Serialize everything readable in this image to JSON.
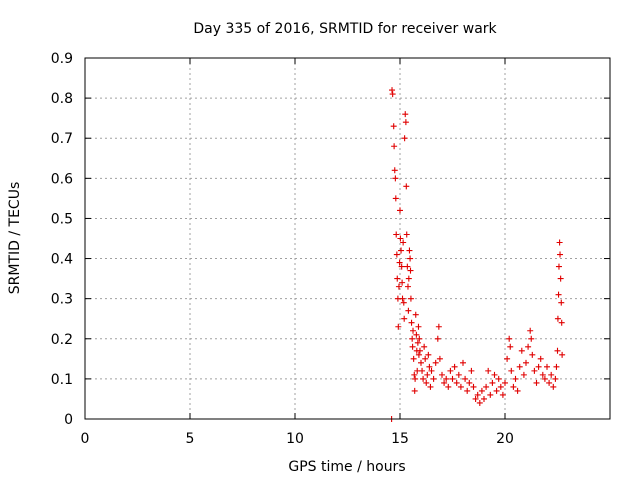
{
  "chart_data": {
    "type": "scatter",
    "title": "Day 335 of 2016, SRMTID for receiver wark",
    "xlabel": "GPS time / hours",
    "ylabel": "SRMTID / TECUs",
    "xlim": [
      0,
      25
    ],
    "ylim": [
      0,
      0.9
    ],
    "xticks": [
      0,
      5,
      10,
      15,
      20
    ],
    "xtick_labels": [
      "0",
      "5",
      "10",
      "15",
      "20"
    ],
    "yticks": [
      0,
      0.1,
      0.2,
      0.3,
      0.4,
      0.5,
      0.6,
      0.7,
      0.8,
      0.9
    ],
    "ytick_labels": [
      "0",
      "0.1",
      "0.2",
      "0.3",
      "0.4",
      "0.5",
      "0.6",
      "0.7",
      "0.8",
      "0.9"
    ],
    "grid": true,
    "marker": "+",
    "color": "#e00000",
    "series": [
      {
        "name": "SRMTID",
        "points": [
          [
            14.6,
            0.0
          ],
          [
            14.62,
            0.82
          ],
          [
            14.65,
            0.81
          ],
          [
            14.7,
            0.73
          ],
          [
            14.72,
            0.68
          ],
          [
            14.75,
            0.62
          ],
          [
            14.78,
            0.6
          ],
          [
            14.8,
            0.55
          ],
          [
            14.82,
            0.46
          ],
          [
            14.85,
            0.41
          ],
          [
            14.87,
            0.35
          ],
          [
            14.9,
            0.3
          ],
          [
            14.92,
            0.23
          ],
          [
            14.95,
            0.33
          ],
          [
            14.98,
            0.39
          ],
          [
            15.0,
            0.52
          ],
          [
            15.02,
            0.45
          ],
          [
            15.05,
            0.42
          ],
          [
            15.08,
            0.38
          ],
          [
            15.1,
            0.34
          ],
          [
            15.12,
            0.3
          ],
          [
            15.15,
            0.44
          ],
          [
            15.18,
            0.29
          ],
          [
            15.2,
            0.25
          ],
          [
            15.22,
            0.7
          ],
          [
            15.25,
            0.76
          ],
          [
            15.28,
            0.74
          ],
          [
            15.3,
            0.58
          ],
          [
            15.32,
            0.46
          ],
          [
            15.35,
            0.38
          ],
          [
            15.38,
            0.33
          ],
          [
            15.4,
            0.27
          ],
          [
            15.42,
            0.35
          ],
          [
            15.45,
            0.42
          ],
          [
            15.48,
            0.4
          ],
          [
            15.5,
            0.37
          ],
          [
            15.52,
            0.3
          ],
          [
            15.55,
            0.24
          ],
          [
            15.58,
            0.2
          ],
          [
            15.6,
            0.18
          ],
          [
            15.62,
            0.22
          ],
          [
            15.65,
            0.15
          ],
          [
            15.68,
            0.11
          ],
          [
            15.7,
            0.07
          ],
          [
            15.72,
            0.1
          ],
          [
            15.75,
            0.26
          ],
          [
            15.78,
            0.21
          ],
          [
            15.8,
            0.17
          ],
          [
            15.82,
            0.12
          ],
          [
            15.85,
            0.19
          ],
          [
            15.88,
            0.23
          ],
          [
            15.9,
            0.16
          ],
          [
            15.92,
            0.2
          ],
          [
            15.95,
            0.17
          ],
          [
            16.0,
            0.14
          ],
          [
            16.05,
            0.12
          ],
          [
            16.1,
            0.1
          ],
          [
            16.15,
            0.18
          ],
          [
            16.2,
            0.15
          ],
          [
            16.25,
            0.09
          ],
          [
            16.3,
            0.11
          ],
          [
            16.35,
            0.16
          ],
          [
            16.4,
            0.13
          ],
          [
            16.45,
            0.08
          ],
          [
            16.5,
            0.12
          ],
          [
            16.6,
            0.1
          ],
          [
            16.7,
            0.14
          ],
          [
            16.8,
            0.2
          ],
          [
            16.85,
            0.23
          ],
          [
            16.9,
            0.15
          ],
          [
            17.0,
            0.11
          ],
          [
            17.1,
            0.09
          ],
          [
            17.2,
            0.1
          ],
          [
            17.3,
            0.08
          ],
          [
            17.4,
            0.12
          ],
          [
            17.5,
            0.1
          ],
          [
            17.6,
            0.13
          ],
          [
            17.7,
            0.09
          ],
          [
            17.8,
            0.11
          ],
          [
            17.9,
            0.08
          ],
          [
            18.0,
            0.14
          ],
          [
            18.1,
            0.1
          ],
          [
            18.2,
            0.07
          ],
          [
            18.3,
            0.09
          ],
          [
            18.4,
            0.12
          ],
          [
            18.5,
            0.08
          ],
          [
            18.6,
            0.05
          ],
          [
            18.7,
            0.06
          ],
          [
            18.8,
            0.04
          ],
          [
            18.9,
            0.07
          ],
          [
            19.0,
            0.05
          ],
          [
            19.1,
            0.08
          ],
          [
            19.2,
            0.12
          ],
          [
            19.3,
            0.06
          ],
          [
            19.4,
            0.09
          ],
          [
            19.5,
            0.11
          ],
          [
            19.6,
            0.07
          ],
          [
            19.7,
            0.1
          ],
          [
            19.8,
            0.08
          ],
          [
            19.9,
            0.06
          ],
          [
            20.0,
            0.09
          ],
          [
            20.1,
            0.15
          ],
          [
            20.2,
            0.2
          ],
          [
            20.25,
            0.18
          ],
          [
            20.3,
            0.12
          ],
          [
            20.4,
            0.08
          ],
          [
            20.5,
            0.1
          ],
          [
            20.6,
            0.07
          ],
          [
            20.7,
            0.13
          ],
          [
            20.8,
            0.17
          ],
          [
            20.9,
            0.11
          ],
          [
            21.0,
            0.14
          ],
          [
            21.1,
            0.18
          ],
          [
            21.2,
            0.22
          ],
          [
            21.25,
            0.2
          ],
          [
            21.3,
            0.16
          ],
          [
            21.4,
            0.12
          ],
          [
            21.5,
            0.09
          ],
          [
            21.6,
            0.13
          ],
          [
            21.7,
            0.15
          ],
          [
            21.8,
            0.11
          ],
          [
            21.9,
            0.1
          ],
          [
            22.0,
            0.13
          ],
          [
            22.1,
            0.09
          ],
          [
            22.2,
            0.11
          ],
          [
            22.3,
            0.08
          ],
          [
            22.4,
            0.1
          ],
          [
            22.45,
            0.13
          ],
          [
            22.5,
            0.17
          ],
          [
            22.52,
            0.25
          ],
          [
            22.55,
            0.31
          ],
          [
            22.57,
            0.38
          ],
          [
            22.6,
            0.44
          ],
          [
            22.62,
            0.41
          ],
          [
            22.65,
            0.35
          ],
          [
            22.68,
            0.29
          ],
          [
            22.7,
            0.24
          ],
          [
            22.72,
            0.16
          ]
        ]
      }
    ]
  }
}
